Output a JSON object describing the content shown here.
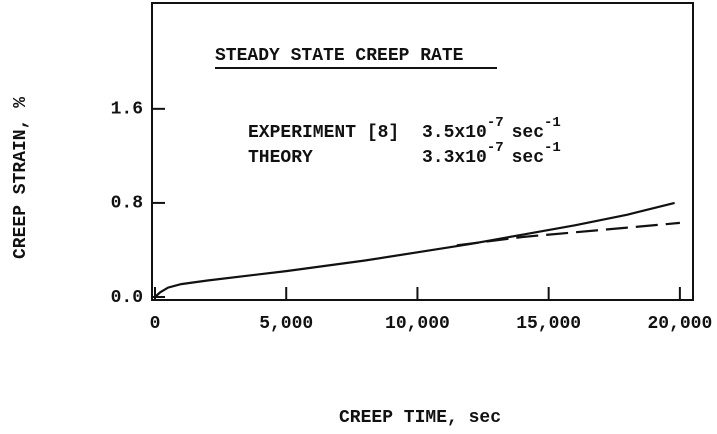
{
  "chart_data": {
    "type": "line",
    "xlabel": "CREEP TIME, sec",
    "ylabel": "CREEP STRAIN, %",
    "annotation_title": "STEADY STATE CREEP RATE",
    "xlim": [
      0,
      20500
    ],
    "ylim": [
      0,
      2.5
    ],
    "xticks": [
      0,
      {
        "value": 5000,
        "label": "5,000"
      },
      {
        "value": 10000,
        "label": "10,000"
      },
      {
        "value": 15000,
        "label": "15,000"
      },
      {
        "value": 20000,
        "label": "20,000"
      }
    ],
    "yticks": [
      {
        "value": 0,
        "label": "0.0"
      },
      {
        "value": 0.8,
        "label": "0.8"
      },
      {
        "value": 1.6,
        "label": "1.6"
      }
    ],
    "series": [
      {
        "name": "EXPERIMENT [8]",
        "color": "#111111",
        "dash": false,
        "rate": {
          "mantissa": "3.5x10",
          "exponent": "-7",
          "unit": "sec",
          "unit_exponent": "-1"
        },
        "x": [
          0,
          200,
          500,
          1000,
          2000,
          5000,
          8000,
          10000,
          12000,
          14000,
          16000,
          18000,
          19800
        ],
        "values": [
          0,
          0.04,
          0.08,
          0.11,
          0.14,
          0.22,
          0.31,
          0.38,
          0.45,
          0.53,
          0.61,
          0.7,
          0.8
        ]
      },
      {
        "name": "THEORY",
        "color": "#111111",
        "dash": true,
        "rate": {
          "mantissa": "3.3x10",
          "exponent": "-7",
          "unit": "sec",
          "unit_exponent": "-1"
        },
        "x": [
          11500,
          14000,
          16000,
          18000,
          20000
        ],
        "values": [
          0.44,
          0.51,
          0.55,
          0.59,
          0.63
        ]
      }
    ]
  }
}
